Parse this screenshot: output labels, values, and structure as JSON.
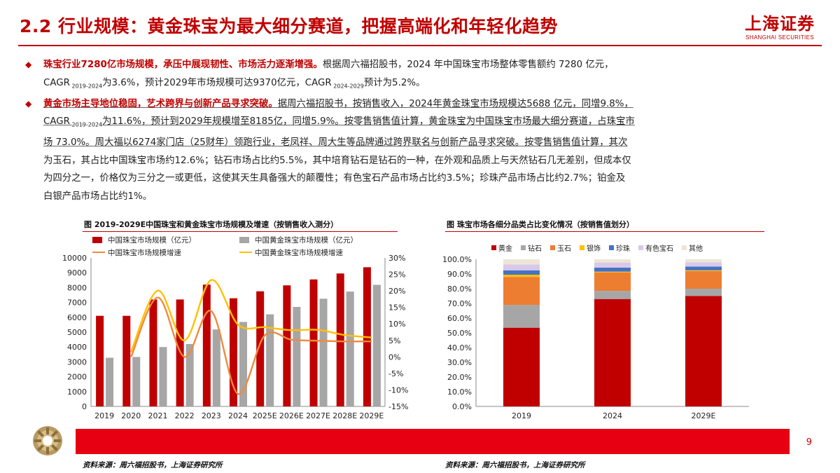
{
  "header": {
    "title": "2.2 行业规模：黄金珠宝为最大细分赛道，把握高端化和年轻化趋势",
    "logo_cn": "上海证券",
    "logo_en": "SHANGHAI SECURITIES"
  },
  "bullets": [
    {
      "bold": "珠宝行业7280亿市场规模，承压中展现韧性、市场活力逐渐增强。",
      "p1": "根据周六福招股书，2024 年中国珠宝市场整体零售额约 7280 亿元，",
      "p2a": "CAGR",
      "sub1": " 2019-2024",
      "p2b": "为3.6%，预计2029年市场规模可达9370亿元，CAGR",
      "sub2": " 2024-2029",
      "p2c": "预计为5.2%。"
    },
    {
      "bold": "黄金市场主导地位稳固，艺术跨界与创新产品寻求突破。",
      "p1": "据周六福招股书，按销售收入，2024年黄金珠宝市场规模达5688 亿元，同增9.8%，",
      "p2a": "CAGR",
      "sub1": " 2019-2024",
      "p2b": "为11.6%，预计到2029年规模增至8185亿，同增5.9%。按零售销售值计算，黄金珠宝为中国珠宝市场最大细分赛道，占珠宝市",
      "p3": "场 73.0%。周大福以6274家门店（25财年）领跑行业，老凤祥、周大生等品牌通过跨界联名与创新产品寻求突破。按零售销售值计算，其次",
      "p4": "为玉石，其占比中国珠宝市场约12.6%；钻石市场占比约5.5%，其中培育钻石是钻石的一种，在外观和品质上与天然钻石几无差别，但成本仅",
      "p5": "为四分之一，价格仅为三分之一或更低，这使其天生具备强大的颠覆性；有色宝石产品市场占比约3.5%；珍珠产品市场占比约2.7%；铂金及",
      "p6": "白银产品市场占比约1%。"
    }
  ],
  "chart_data": [
    {
      "type": "bar",
      "title": "图 2019-2029E中国珠宝和黄金珠宝市场规模及增速（按销售收入测分）",
      "categories": [
        "2019",
        "2020",
        "2021",
        "2022",
        "2023",
        "2024",
        "2025E",
        "2026E",
        "2027E",
        "2028E",
        "2029E"
      ],
      "series": [
        {
          "name": "中国珠宝市场规模（亿元）",
          "kind": "bar",
          "axis": "left",
          "color": "#c00000",
          "values": [
            6100,
            6100,
            7200,
            7200,
            8200,
            7280,
            7750,
            8150,
            8550,
            8950,
            9370
          ]
        },
        {
          "name": "中国黄金珠宝市场规模（亿元）",
          "kind": "bar",
          "axis": "left",
          "color": "#a6a6a6",
          "values": [
            3280,
            3330,
            4000,
            4200,
            5180,
            5688,
            6200,
            6700,
            7250,
            7730,
            8185
          ]
        },
        {
          "name": "中国珠宝市场规模增速",
          "kind": "line",
          "axis": "right",
          "color": "#f08a3c",
          "values": [
            null,
            0.0,
            18.0,
            0.0,
            13.9,
            -11.2,
            6.5,
            5.2,
            4.9,
            4.7,
            4.7
          ]
        },
        {
          "name": "中国黄金珠宝市场规模增速",
          "kind": "line",
          "axis": "right",
          "color": "#ffc000",
          "values": [
            null,
            1.5,
            20.1,
            5.0,
            23.3,
            9.8,
            9.0,
            8.1,
            8.2,
            6.6,
            5.9
          ]
        }
      ],
      "ylim": [
        0,
        10000
      ],
      "yticks": [
        0,
        1000,
        2000,
        3000,
        4000,
        5000,
        6000,
        7000,
        8000,
        9000,
        10000
      ],
      "y2lim": [
        -15,
        30
      ],
      "y2ticks": [
        "-15%",
        "-10%",
        "-5%",
        "0%",
        "5%",
        "10%",
        "15%",
        "20%",
        "25%",
        "30%"
      ],
      "legend": "top",
      "grid": false,
      "source": "资料来源：周六福招股书，上海证券研究所"
    },
    {
      "type": "bar",
      "stacked": true,
      "title": "图 珠宝市场各细分品类占比变化情况（按销售值划分）",
      "categories": [
        "2019",
        "2024",
        "2029E"
      ],
      "series": [
        {
          "name": "黄金",
          "color": "#c00000",
          "values": [
            53.5,
            73.0,
            75.0
          ]
        },
        {
          "name": "钻石",
          "color": "#a6a6a6",
          "values": [
            15.5,
            5.5,
            5.0
          ]
        },
        {
          "name": "玉石",
          "color": "#ed7d31",
          "values": [
            19.0,
            12.6,
            12.0
          ]
        },
        {
          "name": "银饰",
          "color": "#ffc000",
          "values": [
            1.5,
            0.5,
            0.5
          ]
        },
        {
          "name": "珍珠",
          "color": "#4472c4",
          "values": [
            3.0,
            2.7,
            2.5
          ]
        },
        {
          "name": "有色宝石",
          "color": "#d9c9e8",
          "values": [
            4.0,
            3.5,
            3.0
          ]
        },
        {
          "name": "其他",
          "color": "#ede6d6",
          "values": [
            3.5,
            2.2,
            2.0
          ]
        }
      ],
      "ylim": [
        0,
        100
      ],
      "yticks": [
        "0.0%",
        "10.0%",
        "20.0%",
        "30.0%",
        "40.0%",
        "50.0%",
        "60.0%",
        "70.0%",
        "80.0%",
        "90.0%",
        "100.0%"
      ],
      "legend": "top",
      "grid": false,
      "source": "资料来源：周六福招股书，上海证券研究所"
    }
  ],
  "footer": {
    "page_number": "9"
  }
}
